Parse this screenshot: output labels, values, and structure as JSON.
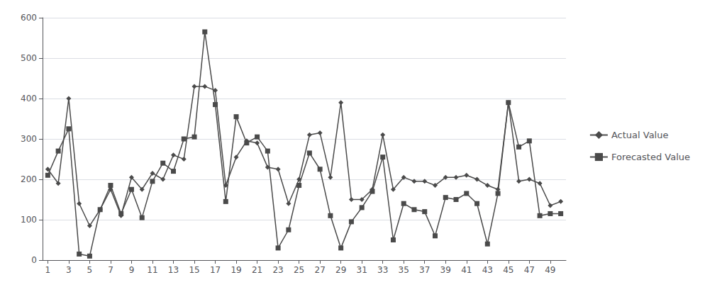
{
  "chart_data": {
    "type": "line",
    "x": [
      1,
      2,
      3,
      4,
      5,
      6,
      7,
      8,
      9,
      10,
      11,
      12,
      13,
      14,
      15,
      16,
      17,
      18,
      19,
      20,
      21,
      22,
      23,
      24,
      25,
      26,
      27,
      28,
      29,
      30,
      31,
      32,
      33,
      34,
      35,
      36,
      37,
      38,
      39,
      40,
      41,
      42,
      43,
      44,
      45,
      46,
      47,
      48,
      49,
      50
    ],
    "series": [
      {
        "name": "Actual Value",
        "color": "#4a4a4a",
        "marker": "diamond",
        "values": [
          225,
          190,
          400,
          140,
          85,
          125,
          175,
          110,
          205,
          175,
          215,
          200,
          260,
          250,
          430,
          430,
          420,
          185,
          255,
          295,
          290,
          230,
          225,
          140,
          200,
          310,
          315,
          205,
          390,
          150,
          150,
          175,
          310,
          175,
          205,
          195,
          195,
          185,
          205,
          205,
          210,
          200,
          185,
          175,
          390,
          195,
          200,
          190,
          135,
          145
        ]
      },
      {
        "name": "Forecasted Value",
        "color": "#4a4a4a",
        "marker": "square",
        "values": [
          210,
          270,
          325,
          15,
          10,
          125,
          185,
          115,
          175,
          105,
          195,
          240,
          220,
          300,
          305,
          565,
          385,
          145,
          355,
          290,
          305,
          270,
          30,
          75,
          185,
          265,
          225,
          110,
          30,
          95,
          130,
          170,
          255,
          50,
          140,
          125,
          120,
          60,
          155,
          150,
          165,
          140,
          40,
          165,
          390,
          280,
          295,
          110,
          115,
          115
        ]
      }
    ],
    "xlim": [
      0.5,
      50.5
    ],
    "xticks": [
      1,
      3,
      5,
      7,
      9,
      11,
      13,
      15,
      17,
      19,
      21,
      23,
      25,
      27,
      29,
      31,
      33,
      35,
      37,
      39,
      41,
      43,
      45,
      47,
      49
    ],
    "ylim": [
      0,
      600
    ],
    "yticks": [
      0,
      100,
      200,
      300,
      400,
      500,
      600
    ],
    "grid": true,
    "legend": "right"
  }
}
